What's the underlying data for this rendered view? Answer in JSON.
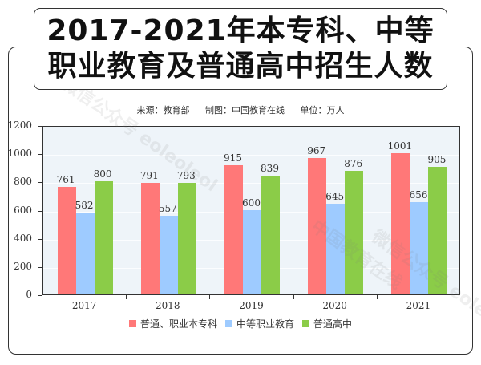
{
  "title": {
    "line1": "2017-2021年本专科、中等",
    "line2": "职业教育及普通高中招生人数"
  },
  "source": {
    "origin": "来源：教育部",
    "maker": "制图：中国教育在线",
    "unit": "单位：万人"
  },
  "watermarks": [
    "微信公众号 eoleoleol",
    "中国教育在线",
    "微信公众号 eoleol"
  ],
  "colors": {
    "series1": "#ff7878",
    "series2": "#9ecbff",
    "series3": "#8bcc48",
    "plot_bg": "#eef4f9"
  },
  "chart_data": {
    "type": "bar",
    "title": "2017-2021年本专科、中等职业教育及普通高中招生人数",
    "subtitle": "来源：教育部 制图：中国教育在线 单位：万人",
    "xlabel": "",
    "ylabel": "万人",
    "categories": [
      "2017",
      "2018",
      "2019",
      "2020",
      "2021"
    ],
    "series": [
      {
        "name": "普通、职业本专科",
        "values": [
          761,
          791,
          915,
          967,
          1001
        ],
        "color": "#ff7878"
      },
      {
        "name": "中等职业教育",
        "values": [
          582,
          557,
          600,
          645,
          656
        ],
        "color": "#9ecbff"
      },
      {
        "name": "普通高中",
        "values": [
          800,
          793,
          839,
          876,
          905
        ],
        "color": "#8bcc48"
      }
    ],
    "ylim": [
      0,
      1200
    ],
    "yticks": [
      "1200",
      "1000",
      "800",
      "600",
      "400",
      "200",
      "0"
    ],
    "grid": true,
    "legend_position": "bottom"
  }
}
